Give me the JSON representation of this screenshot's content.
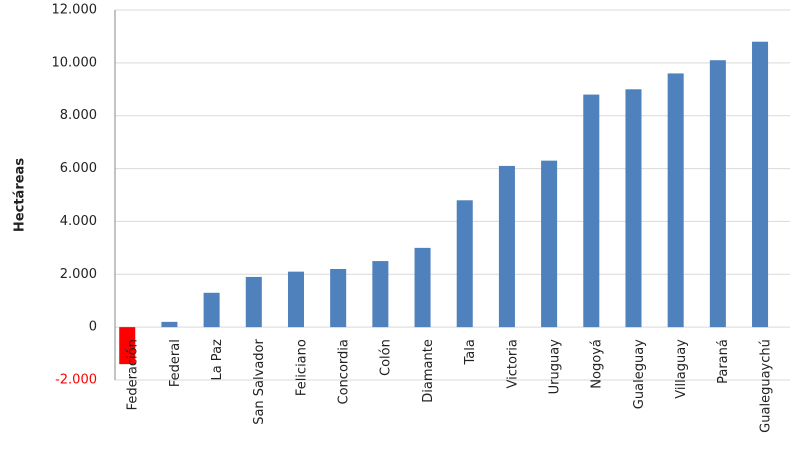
{
  "chart_data": {
    "type": "bar",
    "y_label": "Hectáreas",
    "categories": [
      "Federación",
      "Federal",
      "La Paz",
      "San Salvador",
      "Feliciano",
      "Concordia",
      "Colón",
      "Diamante",
      "Tala",
      "Victoria",
      "Uruguay",
      "Nogoyá",
      "Gualeguay",
      "Villaguay",
      "Paraná",
      "Gualeguaychú"
    ],
    "values": [
      -1400,
      200,
      1300,
      1900,
      2100,
      2200,
      2500,
      3000,
      4800,
      6100,
      6300,
      8800,
      9000,
      9600,
      10100,
      10800
    ],
    "color": "#4f81bd",
    "negative_color": "#ff0000",
    "ylim": [
      -2000,
      12000
    ],
    "yticks": [
      {
        "value": -2000,
        "label": "-2.000"
      },
      0,
      {
        "value": 2000,
        "label": "2.000"
      },
      {
        "value": 4000,
        "label": "4.000"
      },
      {
        "value": 6000,
        "label": "6.000"
      },
      {
        "value": 8000,
        "label": "8.000"
      },
      {
        "value": 10000,
        "label": "10.000"
      },
      {
        "value": 12000,
        "label": "12.000"
      }
    ],
    "grid": true
  }
}
